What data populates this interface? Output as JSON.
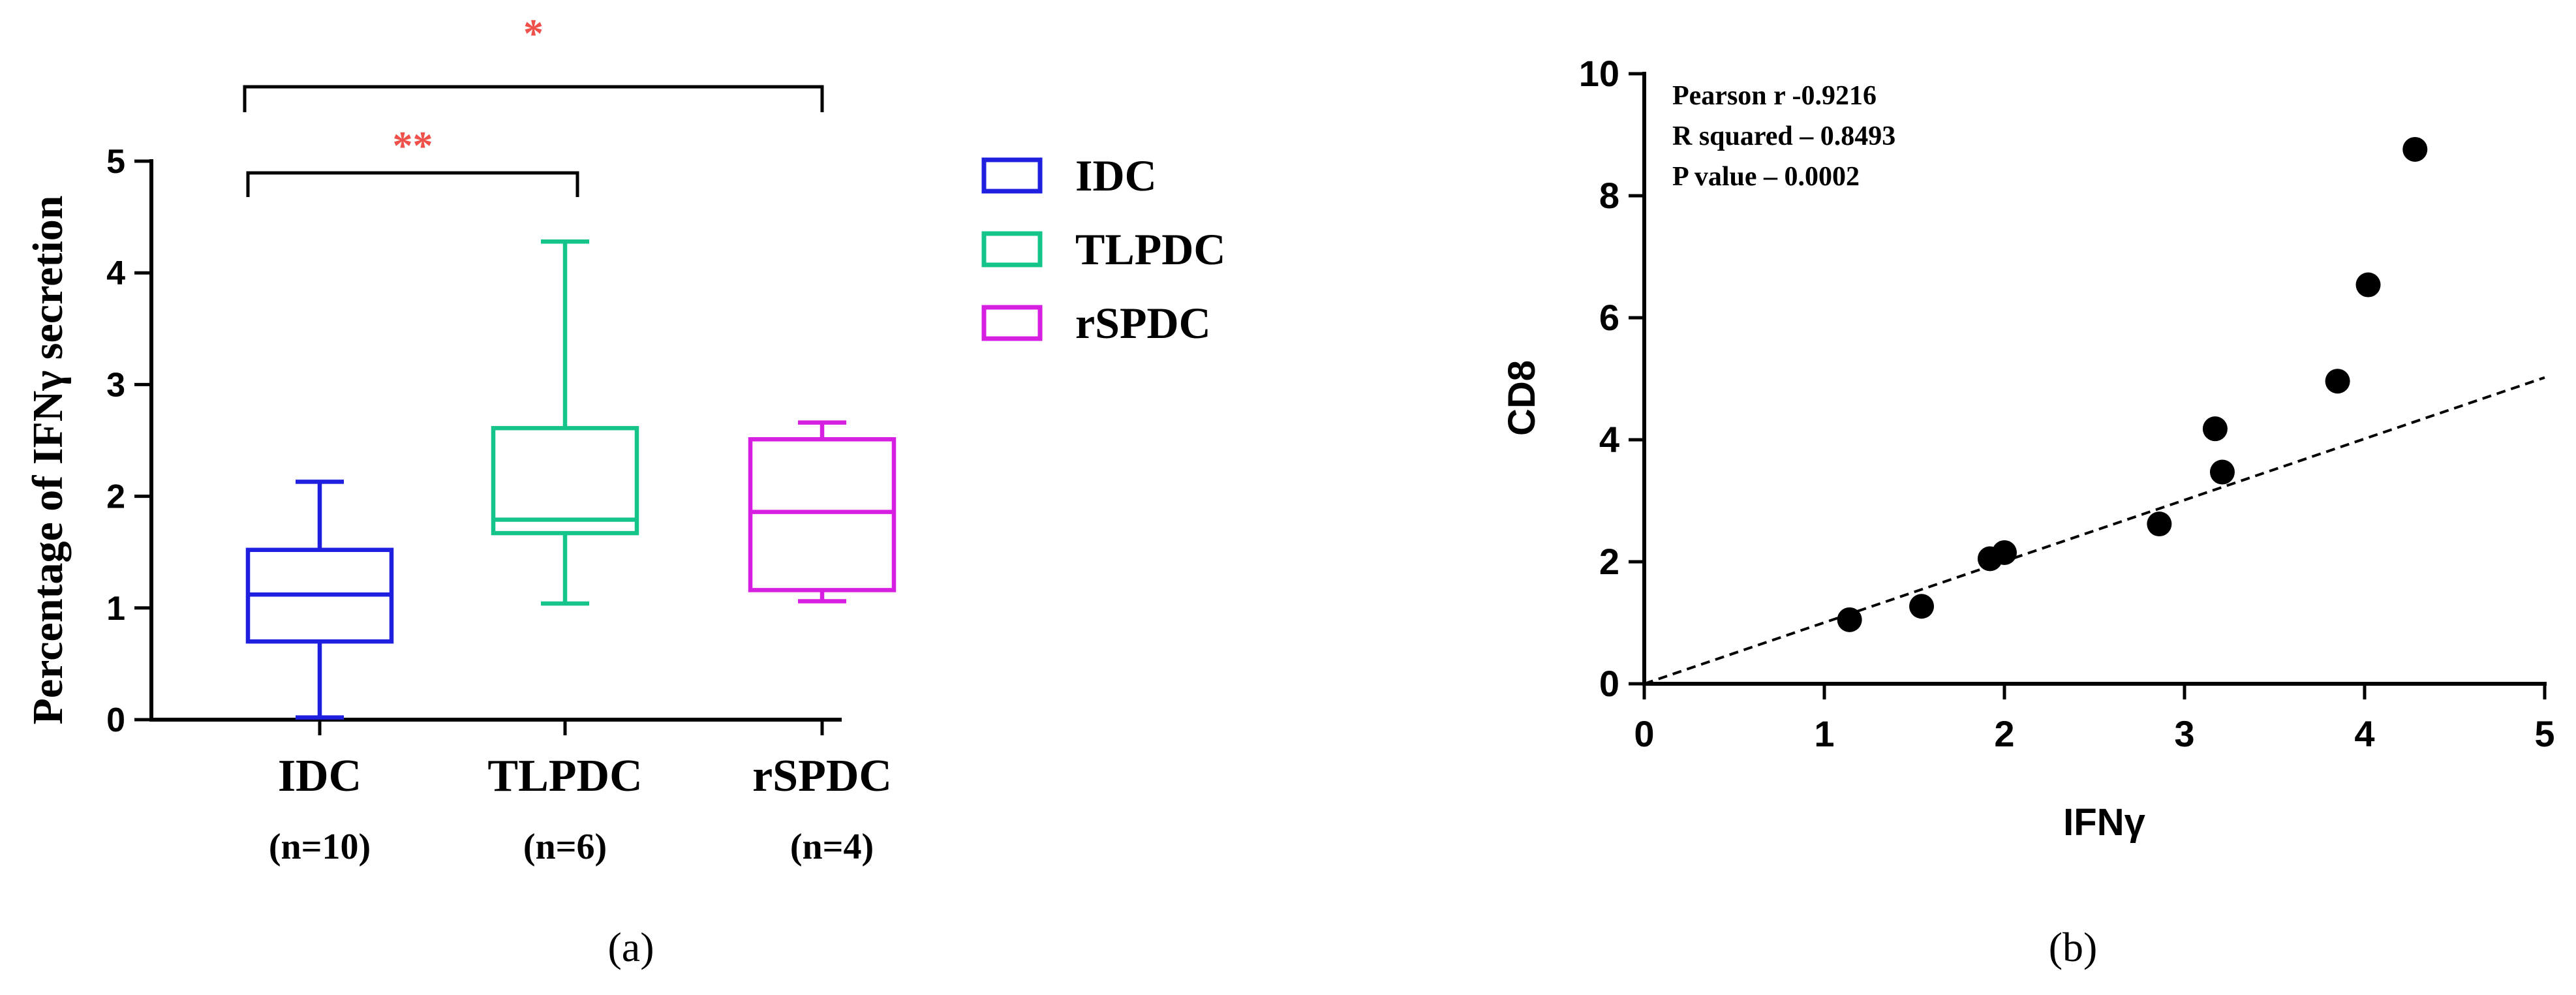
{
  "panels": {
    "a_label": "(a)",
    "b_label": "(b)"
  },
  "chart_data": [
    {
      "type": "box",
      "panel": "a",
      "ylabel": "Percentage of IFNγ secretion",
      "ylim": [
        0,
        5
      ],
      "yticks": [
        "0",
        "1",
        "2",
        "3",
        "4",
        "5"
      ],
      "categories": [
        "IDC",
        "TLPDC",
        "rSPDC"
      ],
      "sample_sizes": [
        "(n=10)",
        "(n=6)",
        "(n=4)"
      ],
      "colors": [
        "#1f1fe0",
        "#14c48a",
        "#d61fe0"
      ],
      "boxes": [
        {
          "name": "IDC",
          "min": 0.02,
          "q1": 0.7,
          "median": 1.12,
          "q3": 1.52,
          "max": 2.13
        },
        {
          "name": "TLPDC",
          "min": 1.04,
          "q1": 1.67,
          "median": 1.79,
          "q3": 2.61,
          "max": 4.28
        },
        {
          "name": "rSPDC",
          "min": 1.06,
          "q1": 1.16,
          "median": 1.86,
          "q3": 2.51,
          "max": 2.66
        }
      ],
      "legend": [
        "IDC",
        "TLPDC",
        "rSPDC"
      ],
      "legend_position": "right",
      "significance": [
        {
          "from": "IDC",
          "to": "TLPDC",
          "label": "**",
          "color": "#f0504a"
        },
        {
          "from": "IDC",
          "to": "rSPDC",
          "label": "*",
          "color": "#f0504a"
        }
      ]
    },
    {
      "type": "scatter",
      "panel": "b",
      "xlabel": "IFNγ",
      "ylabel": "CD8",
      "xlim": [
        0,
        5
      ],
      "ylim": [
        0,
        10
      ],
      "xticks": [
        "0",
        "1",
        "2",
        "3",
        "4",
        "5"
      ],
      "yticks": [
        "0",
        "2",
        "4",
        "6",
        "8",
        "10"
      ],
      "points": [
        {
          "x": 1.14,
          "y": 1.05
        },
        {
          "x": 1.54,
          "y": 1.27
        },
        {
          "x": 1.92,
          "y": 2.05
        },
        {
          "x": 2.0,
          "y": 2.15
        },
        {
          "x": 2.86,
          "y": 2.62
        },
        {
          "x": 3.17,
          "y": 4.18
        },
        {
          "x": 3.21,
          "y": 3.47
        },
        {
          "x": 3.85,
          "y": 4.96
        },
        {
          "x": 4.02,
          "y": 6.54
        },
        {
          "x": 4.28,
          "y": 8.76
        }
      ],
      "trendline": {
        "x": [
          0,
          5
        ],
        "y": [
          0,
          5.02
        ],
        "style": "dashed"
      },
      "annotations": [
        "Pearson r -0.9216",
        "R squared – 0.8493",
        "P value – 0.0002"
      ]
    }
  ]
}
